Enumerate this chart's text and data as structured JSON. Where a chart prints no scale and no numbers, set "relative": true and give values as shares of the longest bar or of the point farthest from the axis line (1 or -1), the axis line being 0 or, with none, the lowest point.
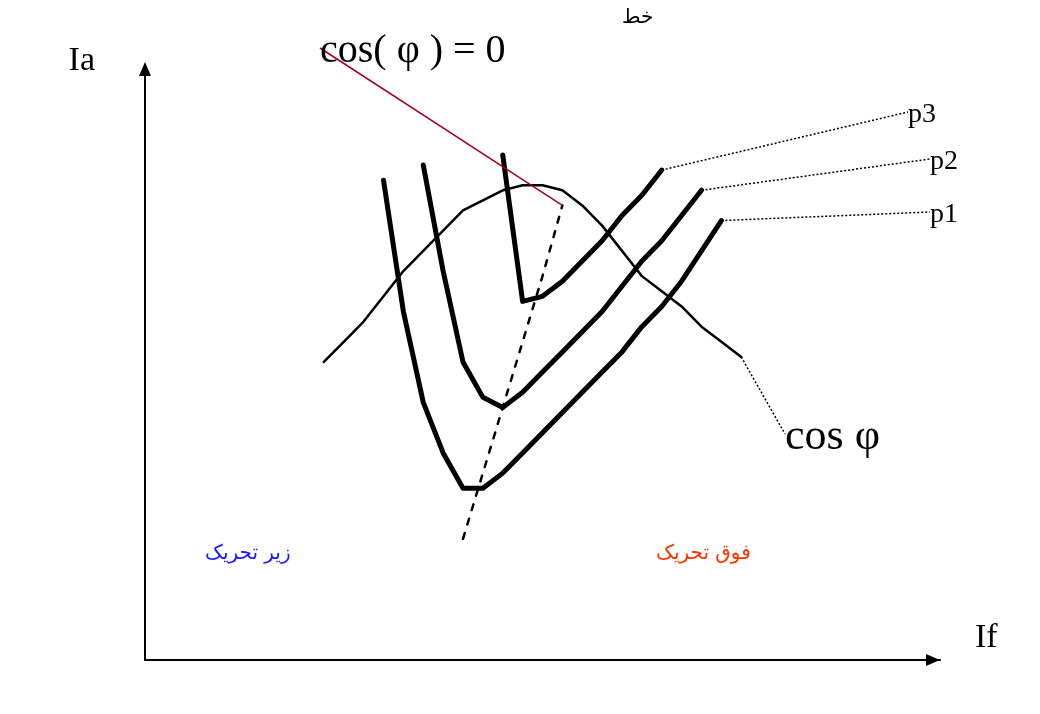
{
  "chart_data": {
    "type": "line",
    "relative": true,
    "xlabel": "If",
    "ylabel": "Ia",
    "grid": false,
    "legend": false,
    "marker": "none",
    "line_style": "solid",
    "categories": [
      null,
      null,
      null,
      null,
      null,
      null,
      null,
      null,
      null,
      null,
      null,
      null,
      null,
      null,
      null,
      null,
      null,
      null,
      null,
      null,
      null,
      null,
      null,
      null,
      null,
      null,
      null,
      null,
      null,
      null,
      null,
      null,
      null,
      null,
      null,
      null,
      null,
      null,
      null,
      null,
      null
    ],
    "series": [
      {
        "name": "p1",
        "color": "#000000",
        "values": [
          null,
          null,
          null,
          null,
          null,
          null,
          null,
          null,
          null,
          null,
          null,
          null,
          0.95,
          0.69,
          0.51,
          0.41,
          0.34,
          0.34,
          0.37,
          0.41,
          0.45,
          0.49,
          0.53,
          0.57,
          0.61,
          0.66,
          0.7,
          0.75,
          0.81,
          0.87,
          null,
          null,
          null,
          null,
          null,
          null,
          null,
          null,
          null,
          null,
          null
        ]
      },
      {
        "name": "p2",
        "color": "#000000",
        "values": [
          null,
          null,
          null,
          null,
          null,
          null,
          null,
          null,
          null,
          null,
          null,
          null,
          null,
          null,
          0.98,
          0.77,
          0.59,
          0.52,
          0.5,
          0.53,
          0.57,
          0.61,
          0.65,
          0.69,
          0.74,
          0.79,
          0.83,
          0.88,
          0.93,
          null,
          null,
          null,
          null,
          null,
          null,
          null,
          null,
          null,
          null,
          null,
          null
        ]
      },
      {
        "name": "p3",
        "color": "#000000",
        "values": [
          null,
          null,
          null,
          null,
          null,
          null,
          null,
          null,
          null,
          null,
          null,
          null,
          null,
          null,
          null,
          null,
          null,
          null,
          1,
          0.71,
          0.72,
          0.75,
          0.79,
          0.83,
          0.88,
          0.92,
          0.97,
          null,
          null,
          null,
          null,
          null,
          null,
          null,
          null,
          null,
          null,
          null,
          null,
          null,
          null
        ]
      },
      {
        "name": "cos φ",
        "color": "#000000",
        "values": [
          null,
          null,
          null,
          null,
          null,
          null,
          null,
          null,
          null,
          0.59,
          0.63,
          0.67,
          0.72,
          0.77,
          0.81,
          0.85,
          0.89,
          0.91,
          0.93,
          0.94,
          0.94,
          0.93,
          0.9,
          0.86,
          0.81,
          0.76,
          0.73,
          0.7,
          0.66,
          0.63,
          0.6,
          null,
          null,
          null,
          null,
          null,
          null,
          null,
          null,
          null,
          null
        ]
      },
      {
        "name": "cos( φ ) = 0",
        "color": "#000000",
        "line_style": "dashed",
        "values": [
          null,
          null,
          null,
          null,
          null,
          null,
          null,
          null,
          null,
          null,
          null,
          null,
          null,
          null,
          null,
          null,
          0.24,
          0.37,
          0.5,
          0.63,
          0.76,
          0.9,
          null,
          null,
          null,
          null,
          null,
          null,
          null,
          null,
          null,
          null,
          null,
          null,
          null,
          null,
          null,
          null,
          null,
          null,
          null
        ]
      }
    ],
    "annotations": [
      "خط",
      "زیر تحریک",
      "فوق تحریک"
    ]
  }
}
